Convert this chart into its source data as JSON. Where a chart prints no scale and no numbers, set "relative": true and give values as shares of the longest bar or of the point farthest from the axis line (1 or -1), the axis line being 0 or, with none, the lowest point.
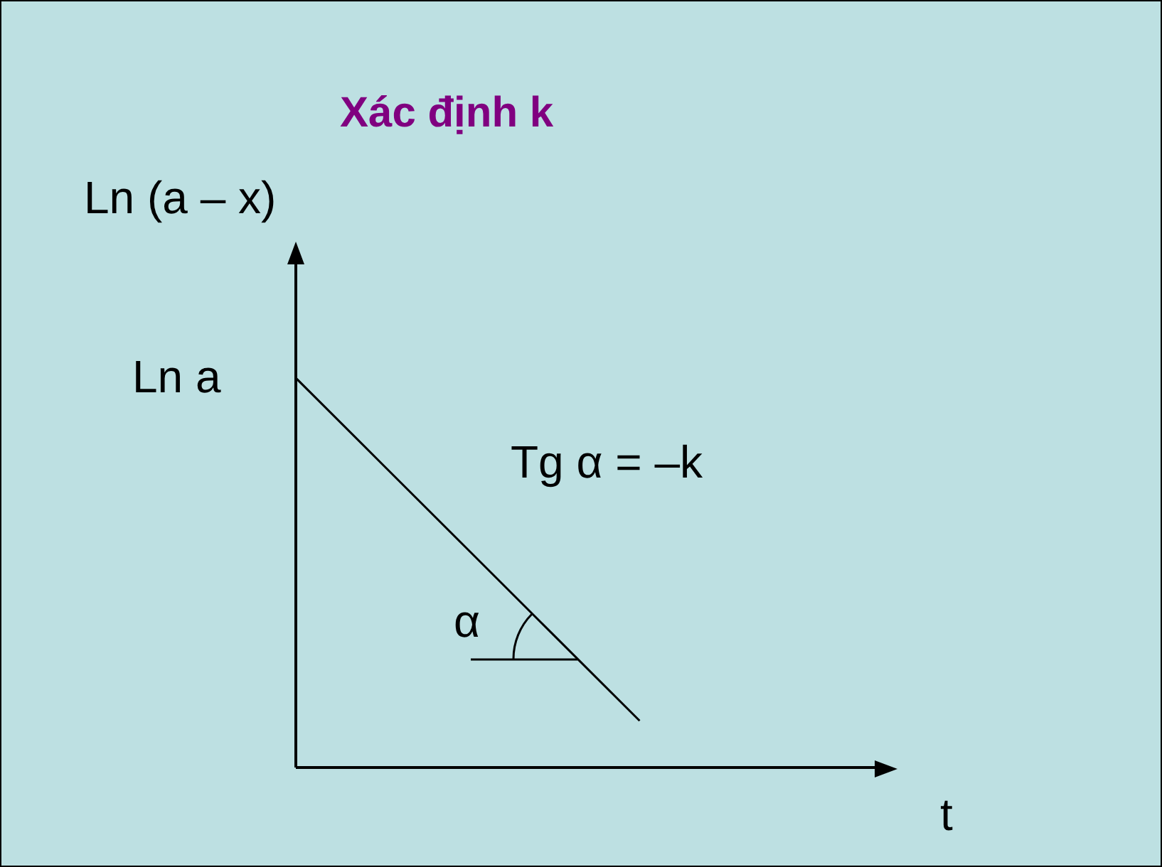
{
  "chart_data": {
    "type": "line",
    "relative": true,
    "title": "Xác định k",
    "ylabel": "Ln (a – x)",
    "xlabel": "t",
    "categories": [
      null,
      null,
      null,
      null,
      null,
      null,
      null,
      null
    ],
    "series": [
      {
        "color": "#000000",
        "values": [
          1,
          0.78,
          0.56,
          0.34,
          0.12,
          null,
          null,
          null
        ]
      }
    ],
    "annotations": [
      "Ln a",
      "Tg α = –k",
      "α"
    ],
    "marker": "none",
    "line_style": "solid",
    "legend": false
  }
}
